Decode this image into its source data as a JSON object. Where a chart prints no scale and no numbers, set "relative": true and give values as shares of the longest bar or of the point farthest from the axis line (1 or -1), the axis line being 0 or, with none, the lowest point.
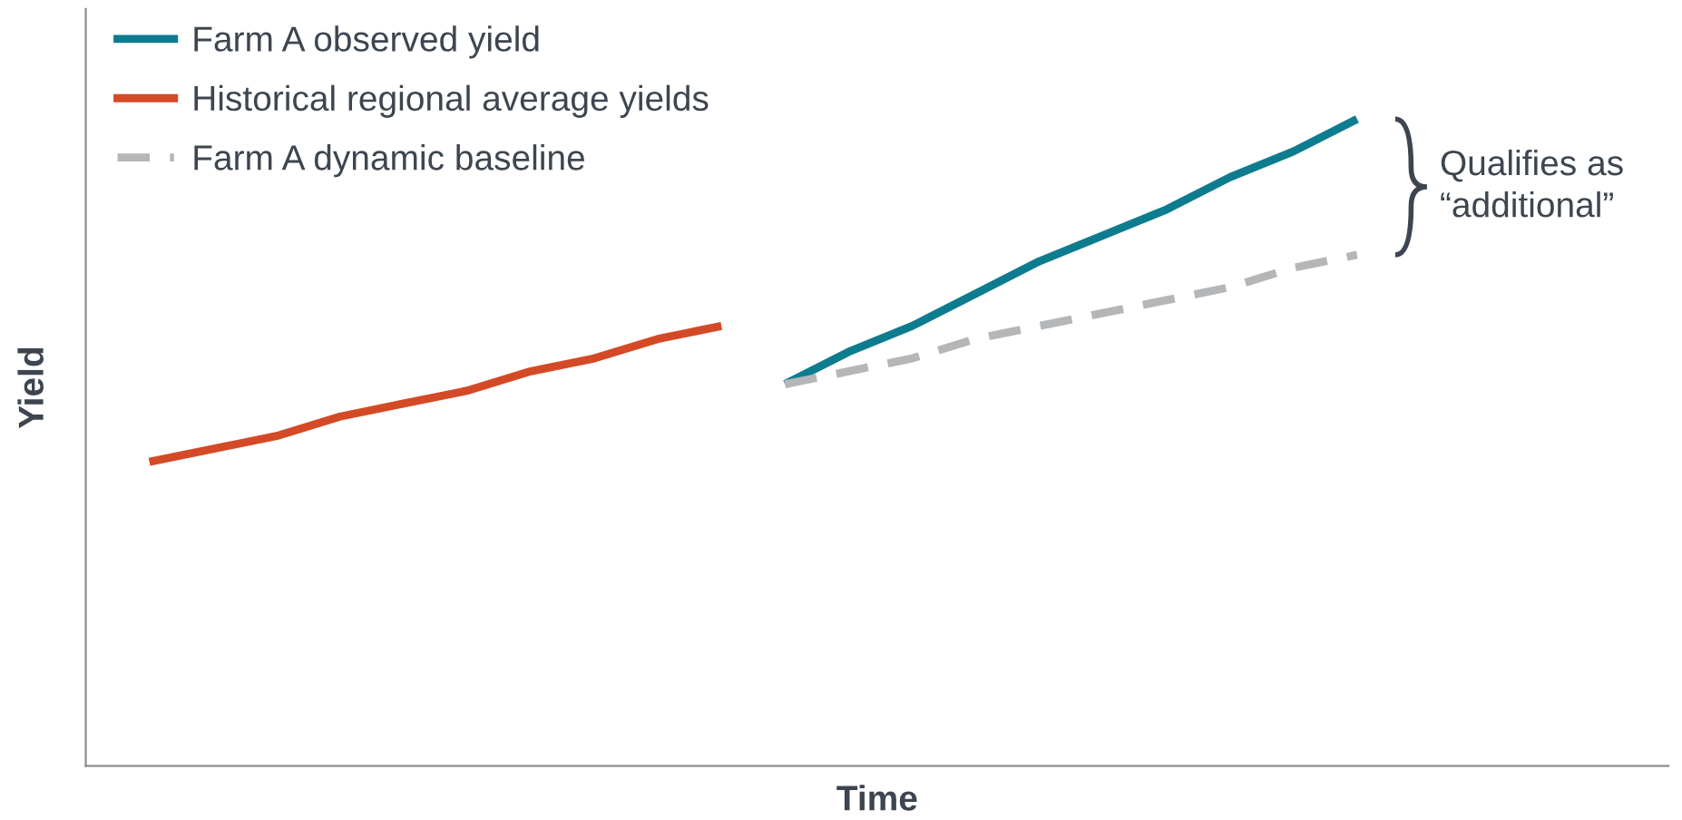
{
  "chart_data": {
    "type": "line",
    "relative": true,
    "xlabel": "Time",
    "ylabel": "Yield",
    "categories": [
      null,
      null,
      null,
      null,
      null,
      null,
      null,
      null,
      null,
      null,
      null,
      null,
      null,
      null,
      null,
      null,
      null,
      null,
      null,
      null
    ],
    "series": [
      {
        "name": "Farm A observed yield",
        "color": "#0e7c8f",
        "values": [
          null,
          null,
          null,
          null,
          null,
          null,
          null,
          null,
          null,
          null,
          0.59,
          0.64,
          0.68,
          0.73,
          0.78,
          0.82,
          0.86,
          0.91,
          0.95,
          1.0
        ]
      },
      {
        "name": "Historical regional average yields",
        "color": "#d44a26",
        "values": [
          0.47,
          0.49,
          0.51,
          0.54,
          0.56,
          0.58,
          0.61,
          0.63,
          0.66,
          0.68,
          null,
          null,
          null,
          null,
          null,
          null,
          null,
          null,
          null,
          null
        ]
      },
      {
        "name": "Farm A dynamic baseline",
        "color": "#b4b6b8",
        "line_style": "dashed",
        "values": [
          null,
          null,
          null,
          null,
          null,
          null,
          null,
          null,
          null,
          null,
          0.59,
          0.61,
          0.63,
          0.66,
          0.68,
          0.7,
          0.72,
          0.74,
          0.77,
          0.79
        ]
      }
    ],
    "annotations": [
      "Qualifies as\n“additional”"
    ],
    "legend": "top left",
    "grid": false,
    "marker": "none"
  }
}
